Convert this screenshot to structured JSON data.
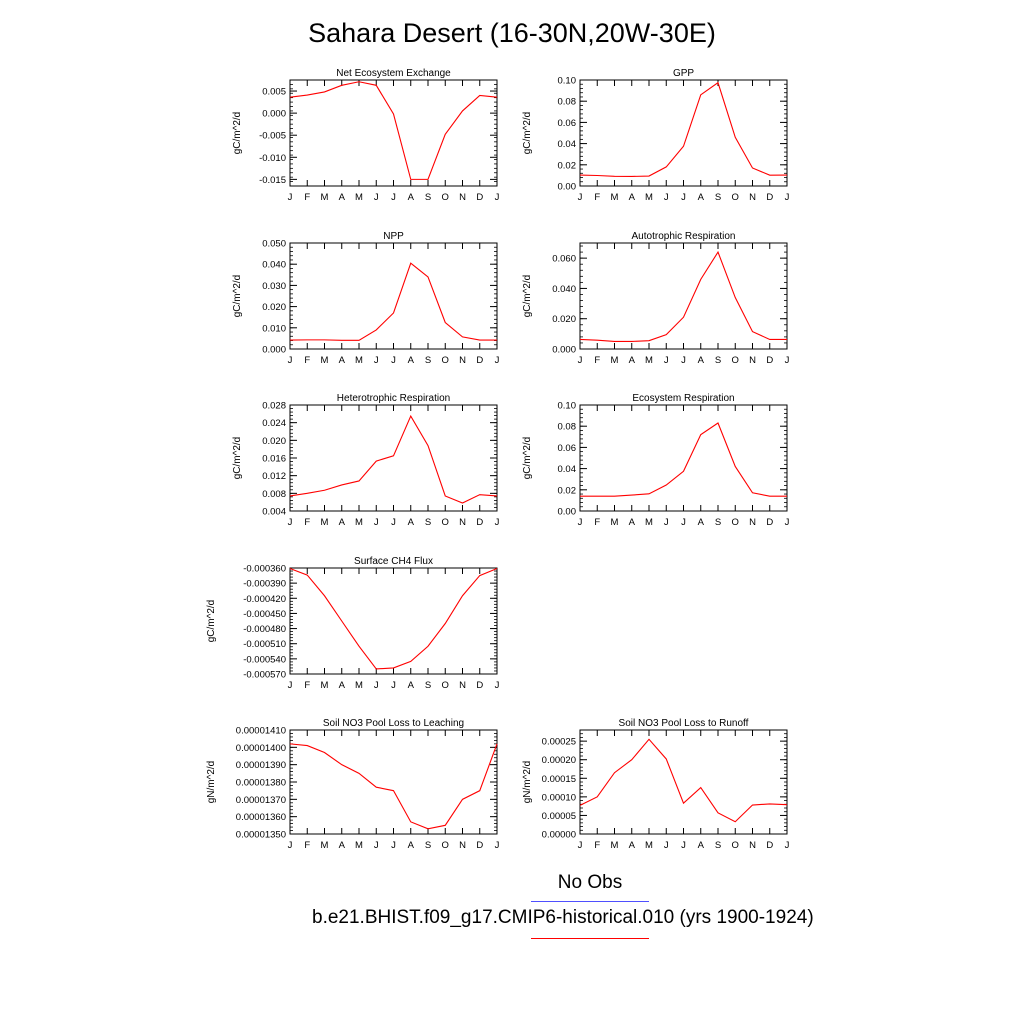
{
  "title": "Sahara Desert (16-30N,20W-30E)",
  "legend": {
    "obs_label": "No Obs",
    "obs_color": "#4f4fff",
    "model_label": "b.e21.BHIST.f09_g17.CMIP6-historical.010 (yrs 1900-1924)",
    "model_color": "#ff0000"
  },
  "chart_data": [
    {
      "type": "line",
      "title": "Net Ecosystem Exchange",
      "ylabel": "gC/m^2/d",
      "x": [
        "J",
        "F",
        "M",
        "A",
        "M",
        "J",
        "J",
        "A",
        "S",
        "O",
        "N",
        "D",
        "J"
      ],
      "ylim": [
        -0.0165,
        0.0075
      ],
      "yticks": [
        -0.015,
        -0.01,
        -0.005,
        0.0,
        0.005
      ],
      "ytick_labels": [
        "-0.015",
        "-0.010",
        "-0.005",
        "0.000",
        "0.005"
      ],
      "series": [
        {
          "values": [
            0.0036,
            0.0041,
            0.0048,
            0.0063,
            0.0071,
            0.0063,
            -0.0002,
            -0.015,
            -0.015,
            -0.0048,
            0.0005,
            0.004,
            0.0036
          ]
        }
      ]
    },
    {
      "type": "line",
      "title": "GPP",
      "ylabel": "gC/m^2/d",
      "x": [
        "J",
        "F",
        "M",
        "A",
        "M",
        "J",
        "J",
        "A",
        "S",
        "O",
        "N",
        "D",
        "J"
      ],
      "ylim": [
        0,
        0.1
      ],
      "yticks": [
        0.0,
        0.02,
        0.04,
        0.06,
        0.08,
        0.1
      ],
      "ytick_labels": [
        "0.00",
        "0.02",
        "0.04",
        "0.06",
        "0.08",
        "0.10"
      ],
      "series": [
        {
          "values": [
            0.0103,
            0.0099,
            0.0091,
            0.009,
            0.0094,
            0.018,
            0.0375,
            0.086,
            0.0975,
            0.046,
            0.017,
            0.0102,
            0.0103
          ]
        }
      ]
    },
    {
      "type": "line",
      "title": "NPP",
      "ylabel": "gC/m^2/d",
      "x": [
        "J",
        "F",
        "M",
        "A",
        "M",
        "J",
        "J",
        "A",
        "S",
        "O",
        "N",
        "D",
        "J"
      ],
      "ylim": [
        0,
        0.05
      ],
      "yticks": [
        0.0,
        0.01,
        0.02,
        0.03,
        0.04,
        0.05
      ],
      "ytick_labels": [
        "0.000",
        "0.010",
        "0.020",
        "0.030",
        "0.040",
        "0.050"
      ],
      "series": [
        {
          "values": [
            0.0042,
            0.0043,
            0.0043,
            0.0041,
            0.0041,
            0.009,
            0.017,
            0.0405,
            0.034,
            0.0125,
            0.0057,
            0.0042,
            0.0042
          ]
        }
      ]
    },
    {
      "type": "line",
      "title": "Autotrophic Respiration",
      "ylabel": "gC/m^2/d",
      "x": [
        "J",
        "F",
        "M",
        "A",
        "M",
        "J",
        "J",
        "A",
        "S",
        "O",
        "N",
        "D",
        "J"
      ],
      "ylim": [
        0,
        0.07
      ],
      "yticks": [
        0.0,
        0.02,
        0.04,
        0.06
      ],
      "ytick_labels": [
        "0.000",
        "0.020",
        "0.040",
        "0.060"
      ],
      "series": [
        {
          "values": [
            0.0063,
            0.0058,
            0.005,
            0.005,
            0.0055,
            0.0095,
            0.021,
            0.046,
            0.064,
            0.034,
            0.0115,
            0.0063,
            0.0063
          ]
        }
      ]
    },
    {
      "type": "line",
      "title": "Heterotrophic Respiration",
      "ylabel": "gC/m^2/d",
      "x": [
        "J",
        "F",
        "M",
        "A",
        "M",
        "J",
        "J",
        "A",
        "S",
        "O",
        "N",
        "D",
        "J"
      ],
      "ylim": [
        0.004,
        0.028
      ],
      "yticks": [
        0.004,
        0.008,
        0.012,
        0.016,
        0.02,
        0.024,
        0.028
      ],
      "ytick_labels": [
        "0.004",
        "0.008",
        "0.012",
        "0.016",
        "0.020",
        "0.024",
        "0.028"
      ],
      "series": [
        {
          "values": [
            0.0074,
            0.008,
            0.0087,
            0.0099,
            0.0108,
            0.0153,
            0.0165,
            0.0255,
            0.0188,
            0.0074,
            0.0058,
            0.0077,
            0.0074
          ]
        }
      ]
    },
    {
      "type": "line",
      "title": "Ecosystem Respiration",
      "ylabel": "gC/m^2/d",
      "x": [
        "J",
        "F",
        "M",
        "A",
        "M",
        "J",
        "J",
        "A",
        "S",
        "O",
        "N",
        "D",
        "J"
      ],
      "ylim": [
        0,
        0.1
      ],
      "yticks": [
        0.0,
        0.02,
        0.04,
        0.06,
        0.08,
        0.1
      ],
      "ytick_labels": [
        "0.00",
        "0.02",
        "0.04",
        "0.06",
        "0.08",
        "0.10"
      ],
      "series": [
        {
          "values": [
            0.014,
            0.014,
            0.014,
            0.015,
            0.0162,
            0.0245,
            0.0375,
            0.072,
            0.083,
            0.042,
            0.0172,
            0.014,
            0.014
          ]
        }
      ]
    },
    {
      "type": "line",
      "title": "Surface CH4 Flux",
      "ylabel": "gC/m^2/d",
      "x": [
        "J",
        "F",
        "M",
        "A",
        "M",
        "J",
        "J",
        "A",
        "S",
        "O",
        "N",
        "D",
        "J"
      ],
      "ylim": [
        -0.00057,
        -0.00036
      ],
      "yticks": [
        -0.00057,
        -0.00054,
        -0.00051,
        -0.00048,
        -0.00045,
        -0.00042,
        -0.00039,
        -0.00036
      ],
      "ytick_labels": [
        "-0.000570",
        "-0.000540",
        "-0.000510",
        "-0.000480",
        "-0.000450",
        "-0.000420",
        "-0.000390",
        "-0.000360"
      ],
      "series": [
        {
          "values": [
            -0.000361,
            -0.000374,
            -0.000415,
            -0.000465,
            -0.000515,
            -0.00056,
            -0.000558,
            -0.000545,
            -0.000515,
            -0.00047,
            -0.000415,
            -0.000375,
            -0.000361
          ]
        }
      ]
    },
    {
      "type": "line",
      "title": "Soil NO3 Pool Loss to Leaching",
      "ylabel": "gN/m^2/d",
      "x": [
        "J",
        "F",
        "M",
        "A",
        "M",
        "J",
        "J",
        "A",
        "S",
        "O",
        "N",
        "D",
        "J"
      ],
      "ylim": [
        1.35e-05,
        1.41e-05
      ],
      "yticks": [
        1.35e-05,
        1.36e-05,
        1.37e-05,
        1.38e-05,
        1.39e-05,
        1.4e-05,
        1.41e-05
      ],
      "ytick_labels": [
        "0.00001350",
        "0.00001360",
        "0.00001370",
        "0.00001380",
        "0.00001390",
        "0.00001400",
        "0.00001410"
      ],
      "series": [
        {
          "values": [
            1.402e-05,
            1.401e-05,
            1.397e-05,
            1.39e-05,
            1.385e-05,
            1.377e-05,
            1.375e-05,
            1.357e-05,
            1.353e-05,
            1.355e-05,
            1.37e-05,
            1.375e-05,
            1.402e-05
          ]
        }
      ]
    },
    {
      "type": "line",
      "title": "Soil NO3 Pool Loss to Runoff",
      "ylabel": "gN/m^2/d",
      "x": [
        "J",
        "F",
        "M",
        "A",
        "M",
        "J",
        "J",
        "A",
        "S",
        "O",
        "N",
        "D",
        "J"
      ],
      "ylim": [
        0,
        0.00028
      ],
      "yticks": [
        0.0,
        5e-05,
        0.0001,
        0.00015,
        0.0002,
        0.00025
      ],
      "ytick_labels": [
        "0.00000",
        "0.00005",
        "0.00010",
        "0.00015",
        "0.00020",
        "0.00025"
      ],
      "series": [
        {
          "values": [
            7.7e-05,
            0.0001,
            0.000165,
            0.0002,
            0.000255,
            0.000202,
            8.3e-05,
            0.000125,
            5.7e-05,
            3.3e-05,
            7.8e-05,
            8.1e-05,
            7.9e-05
          ]
        }
      ]
    }
  ]
}
